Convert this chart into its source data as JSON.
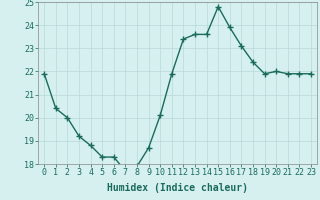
{
  "xlabel": "Humidex (Indice chaleur)",
  "x": [
    0,
    1,
    2,
    3,
    4,
    5,
    6,
    7,
    8,
    9,
    10,
    11,
    12,
    13,
    14,
    15,
    16,
    17,
    18,
    19,
    20,
    21,
    22,
    23
  ],
  "y": [
    21.9,
    20.4,
    20.0,
    19.2,
    18.8,
    18.3,
    18.3,
    17.7,
    17.9,
    18.7,
    20.1,
    21.9,
    23.4,
    23.6,
    23.6,
    24.8,
    23.9,
    23.1,
    22.4,
    21.9,
    22.0,
    21.9,
    21.9,
    21.9
  ],
  "line_color": "#1a6b5a",
  "marker": "+",
  "marker_size": 4,
  "bg_color": "#d6f0f0",
  "grid_color": "#b8d8d8",
  "ylim": [
    18,
    25
  ],
  "yticks": [
    18,
    19,
    20,
    21,
    22,
    23,
    24,
    25
  ],
  "xticks": [
    0,
    1,
    2,
    3,
    4,
    5,
    6,
    7,
    8,
    9,
    10,
    11,
    12,
    13,
    14,
    15,
    16,
    17,
    18,
    19,
    20,
    21,
    22,
    23
  ],
  "xlabel_fontsize": 7,
  "tick_fontsize": 6,
  "linewidth": 1.0
}
